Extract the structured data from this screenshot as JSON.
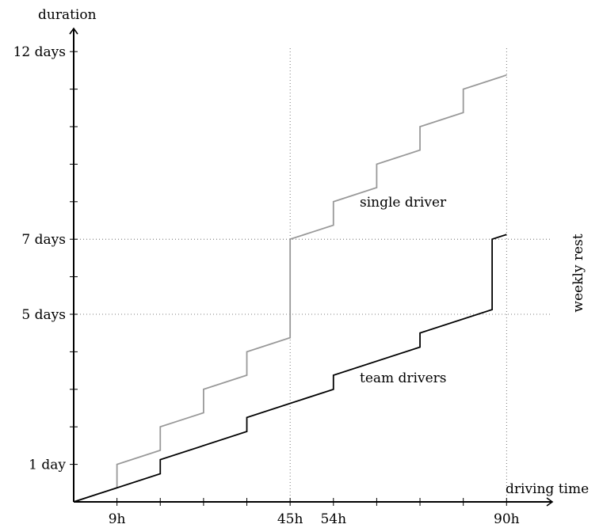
{
  "chart_data": {
    "type": "line",
    "xlabel": "driving time",
    "ylabel": "duration",
    "xlim": [
      0,
      100
    ],
    "ylim": [
      0,
      12.5
    ],
    "x_tick_labels": [
      {
        "value": 9,
        "label": "9h"
      },
      {
        "value": 45,
        "label": "45h"
      },
      {
        "value": 54,
        "label": "54h"
      },
      {
        "value": 90,
        "label": "90h"
      }
    ],
    "x_minor_ticks": [
      18,
      27,
      36,
      63,
      72,
      81
    ],
    "y_tick_labels": [
      {
        "value": 1,
        "label": "1 day"
      },
      {
        "value": 5,
        "label": "5 days"
      },
      {
        "value": 7,
        "label": "7 days"
      },
      {
        "value": 12,
        "label": "12 days"
      }
    ],
    "y_minor_ticks": [
      2,
      3,
      4,
      6,
      8,
      9,
      10,
      11
    ],
    "reference_lines": {
      "vertical": [
        45,
        90
      ],
      "horizontal": [
        5,
        7
      ],
      "style": "dotted"
    },
    "annotation": "weekly rest",
    "series": [
      {
        "name": "single driver",
        "color": "#999999",
        "points": [
          [
            0,
            0
          ],
          [
            9,
            0.375
          ],
          [
            9,
            1
          ],
          [
            13.5,
            1.1875
          ],
          [
            18,
            1.375
          ],
          [
            18,
            2
          ],
          [
            22.5,
            2.1875
          ],
          [
            27,
            2.375
          ],
          [
            27,
            3
          ],
          [
            31.5,
            3.1875
          ],
          [
            36,
            3.375
          ],
          [
            36,
            4
          ],
          [
            40.5,
            4.1875
          ],
          [
            45,
            4.375
          ],
          [
            45,
            7
          ],
          [
            49.5,
            7.1875
          ],
          [
            54,
            7.375
          ],
          [
            54,
            8
          ],
          [
            58.5,
            8.1875
          ],
          [
            63,
            8.375
          ],
          [
            63,
            9
          ],
          [
            67.5,
            9.1875
          ],
          [
            72,
            9.375
          ],
          [
            72,
            10
          ],
          [
            76.5,
            10.1875
          ],
          [
            81,
            10.375
          ],
          [
            81,
            11
          ],
          [
            85.5,
            11.1875
          ],
          [
            90,
            11.375
          ]
        ]
      },
      {
        "name": "team drivers",
        "color": "#000000",
        "points": [
          [
            0,
            0
          ],
          [
            18,
            0.75
          ],
          [
            18,
            1.125
          ],
          [
            36,
            1.875
          ],
          [
            36,
            2.25
          ],
          [
            54,
            3
          ],
          [
            54,
            3.375
          ],
          [
            72,
            4.125
          ],
          [
            72,
            4.5
          ],
          [
            87,
            5.125
          ],
          [
            87,
            7
          ],
          [
            90,
            7.125
          ]
        ]
      }
    ]
  }
}
